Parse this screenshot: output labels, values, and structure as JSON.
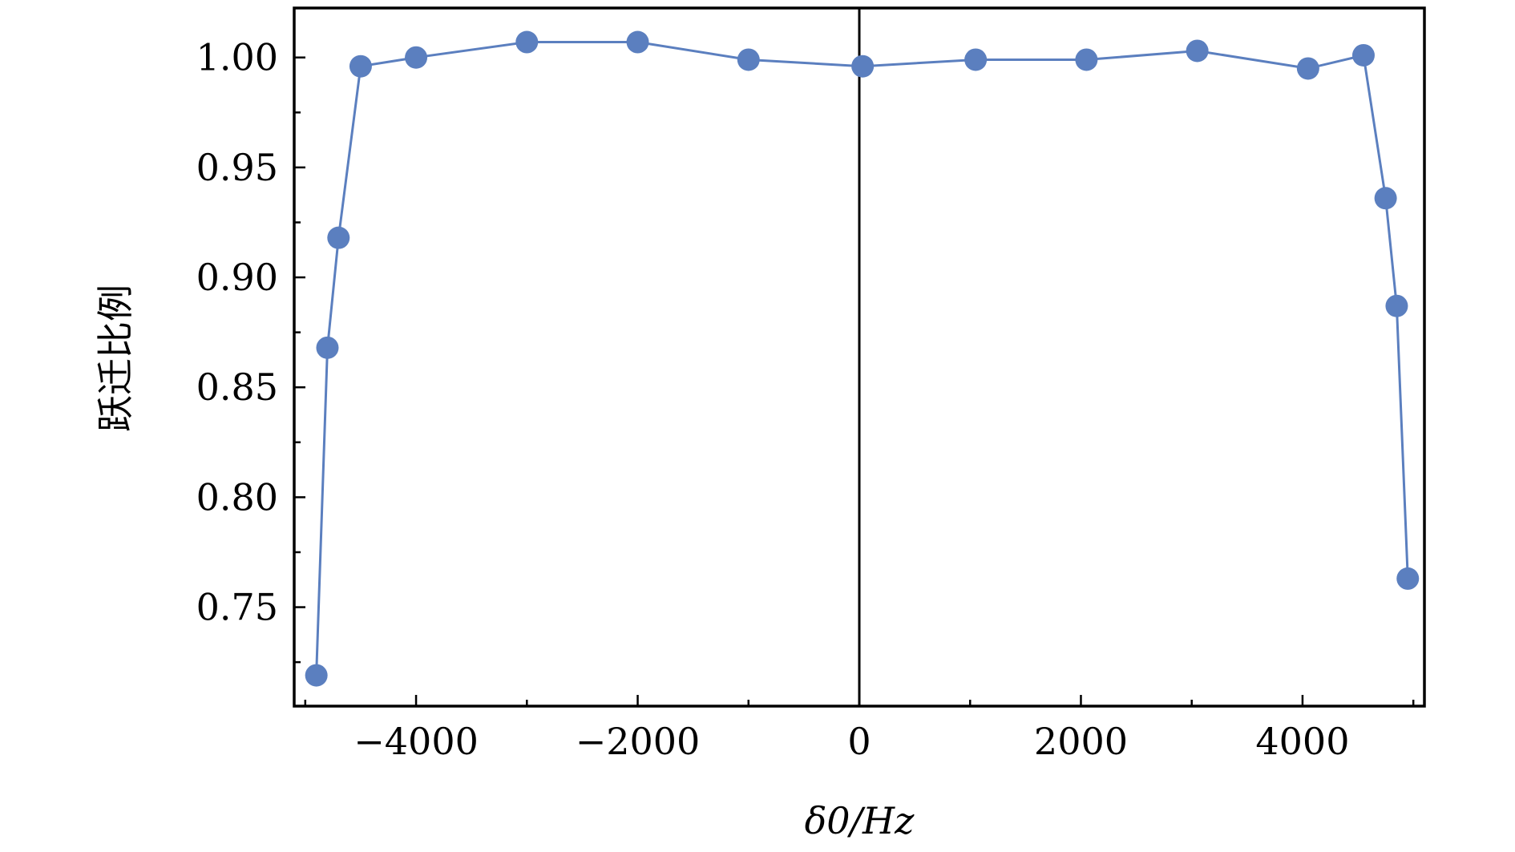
{
  "chart_data": {
    "type": "line",
    "xlabel": "δ0/Hz",
    "ylabel": "跃迁比例",
    "xlim": [
      -5100,
      5100
    ],
    "ylim": [
      0.705,
      1.0225
    ],
    "x_ticks": [
      -4000,
      -2000,
      0,
      2000,
      4000
    ],
    "x_tick_labels": [
      "−4000",
      "−2000",
      "0",
      "2000",
      "4000"
    ],
    "y_ticks": [
      0.75,
      0.8,
      0.85,
      0.9,
      0.95,
      1.0
    ],
    "y_tick_labels": [
      "0.75",
      "0.80",
      "0.85",
      "0.90",
      "0.95",
      "1.00"
    ],
    "grid": false,
    "marker_color": "#5b7fbf",
    "zero_line_color": "#000000",
    "series": [
      {
        "x": [
          -4900,
          -4800,
          -4700,
          -4500,
          -4000,
          -3000,
          -2000,
          -1000,
          30,
          1050,
          2050,
          3050,
          4050,
          4550,
          4750,
          4850,
          4950
        ],
        "y": [
          0.719,
          0.868,
          0.918,
          0.996,
          1.0,
          1.007,
          1.007,
          0.999,
          0.996,
          0.999,
          0.999,
          1.003,
          0.995,
          1.001,
          0.936,
          0.887,
          0.763
        ]
      }
    ]
  }
}
